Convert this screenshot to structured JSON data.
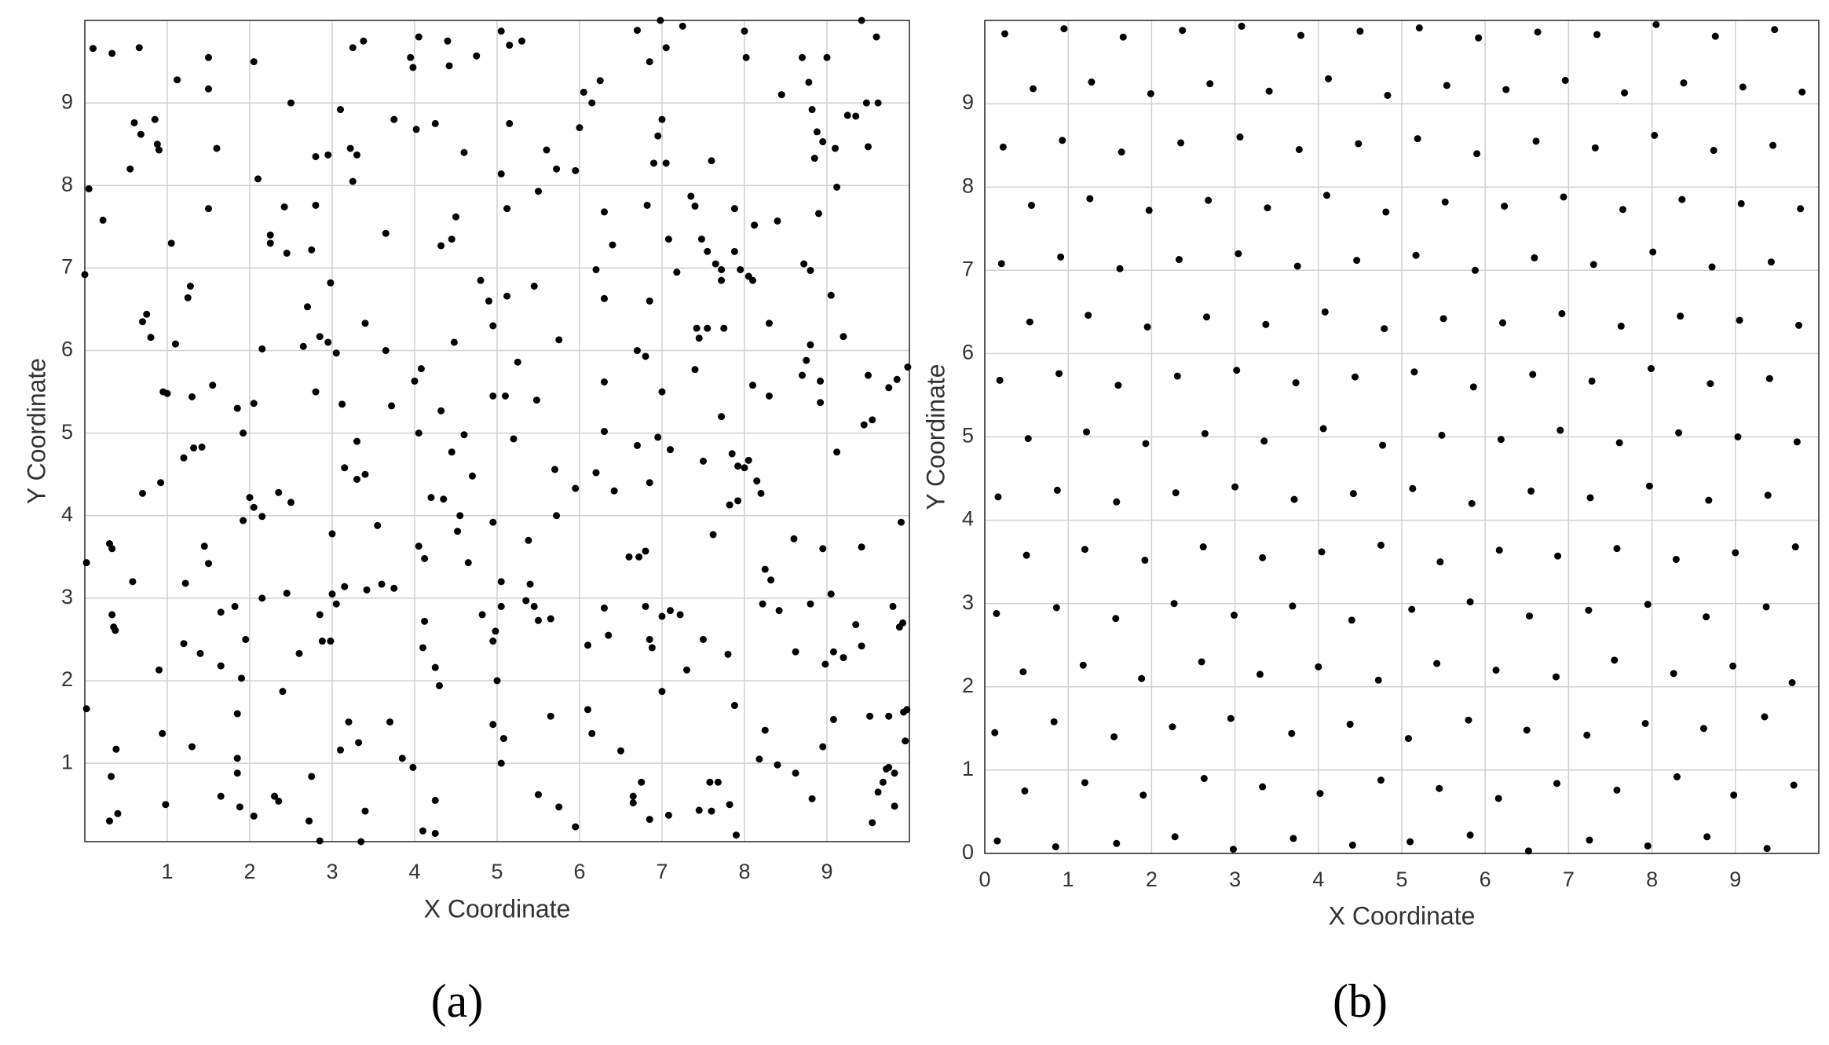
{
  "chart_data": [
    {
      "type": "scatter",
      "label": "(a)",
      "xlabel": "X Coordinate",
      "ylabel": "Y Coordinate",
      "color": "#000000",
      "grid": true,
      "xlim": [
        0,
        10
      ],
      "ylim": [
        0.05,
        10
      ],
      "xticks": [
        1,
        2,
        3,
        4,
        5,
        6,
        7,
        8,
        9
      ],
      "yticks": [
        1,
        2,
        3,
        4,
        5,
        6,
        7,
        8,
        9
      ],
      "x": [
        0.02,
        0.02,
        0.05,
        0.0,
        0.1,
        0.22,
        0.3,
        0.33,
        0.3,
        0.33,
        0.35,
        0.37,
        0.32,
        0.38,
        0.4,
        0.33,
        0.55,
        0.6,
        0.68,
        0.7,
        0.75,
        0.8,
        0.85,
        0.88,
        0.9,
        0.66,
        0.58,
        0.7,
        0.9,
        0.95,
        0.92,
        0.94,
        0.98,
        1.0,
        1.05,
        1.12,
        1.1,
        1.2,
        1.2,
        1.22,
        1.25,
        1.28,
        1.3,
        1.32,
        1.3,
        1.42,
        1.45,
        1.5,
        1.5,
        1.5,
        1.5,
        1.55,
        1.6,
        1.65,
        1.65,
        1.65,
        1.4,
        1.85,
        1.82,
        1.85,
        1.85,
        1.85,
        1.9,
        1.88,
        1.92,
        1.92,
        1.95,
        2.0,
        2.05,
        2.05,
        2.05,
        2.1,
        2.15,
        2.15,
        2.15,
        2.05,
        2.25,
        2.25,
        2.3,
        2.35,
        2.35,
        2.4,
        2.42,
        2.45,
        2.5,
        2.45,
        2.5,
        2.6,
        2.65,
        2.7,
        2.75,
        2.75,
        2.72,
        2.8,
        2.8,
        2.8,
        2.85,
        2.85,
        2.88,
        2.85,
        2.95,
        2.95,
        2.98,
        2.98,
        3.0,
        3.0,
        3.05,
        3.05,
        3.1,
        3.12,
        3.15,
        3.15,
        3.1,
        3.2,
        3.22,
        3.25,
        3.25,
        3.3,
        3.3,
        3.3,
        3.32,
        3.38,
        3.4,
        3.4,
        3.35,
        3.42,
        3.4,
        3.55,
        3.6,
        3.65,
        3.65,
        3.7,
        3.72,
        3.75,
        3.75,
        3.85,
        3.95,
        3.98,
        4.0,
        3.98,
        4.05,
        4.02,
        4.08,
        4.05,
        4.05,
        4.12,
        4.1,
        4.12,
        4.2,
        4.25,
        4.25,
        4.3,
        4.25,
        4.25,
        4.1,
        4.32,
        4.32,
        4.35,
        4.4,
        4.42,
        4.45,
        4.45,
        4.48,
        4.5,
        4.52,
        4.55,
        4.6,
        4.6,
        4.65,
        4.7,
        4.75,
        4.8,
        4.82,
        4.9,
        4.95,
        4.95,
        4.95,
        4.98,
        4.95,
        4.95,
        5.0,
        5.05,
        5.05,
        5.05,
        5.05,
        5.08,
        5.05,
        5.1,
        5.12,
        5.12,
        5.15,
        5.15,
        5.2,
        5.25,
        5.3,
        5.35,
        5.38,
        5.4,
        5.45,
        5.45,
        5.5,
        5.48,
        5.5,
        5.5,
        5.6,
        5.65,
        5.65,
        5.7,
        5.72,
        5.75,
        5.72,
        5.75,
        5.95,
        5.95,
        5.95,
        6.0,
        6.05,
        6.1,
        6.1,
        6.15,
        6.15,
        6.2,
        6.2,
        6.25,
        6.3,
        6.3,
        6.3,
        6.3,
        6.3,
        6.35,
        6.4,
        6.42,
        6.5,
        6.6,
        6.65,
        6.65,
        6.7,
        6.7,
        6.7,
        6.72,
        6.75,
        6.8,
        6.8,
        6.8,
        6.82,
        6.85,
        6.85,
        6.85,
        6.88,
        6.85,
        6.85,
        6.9,
        6.95,
        6.98,
        6.95,
        7.0,
        7.0,
        7.0,
        7.0,
        7.05,
        7.05,
        7.08,
        7.1,
        7.1,
        7.08,
        7.18,
        7.22,
        7.25,
        7.3,
        7.35,
        7.4,
        7.42,
        7.4,
        7.45,
        7.45,
        7.48,
        7.5,
        7.5,
        7.55,
        7.55,
        7.6,
        7.62,
        7.58,
        7.6,
        7.65,
        7.68,
        7.72,
        7.72,
        7.72,
        7.75,
        7.8,
        7.82,
        7.82,
        7.88,
        7.85,
        7.88,
        7.9,
        7.92,
        7.92,
        7.88,
        7.95,
        8.0,
        8.0,
        8.02,
        8.05,
        8.05,
        8.1,
        8.1,
        8.12,
        8.15,
        8.18,
        8.2,
        8.22,
        8.25,
        8.25,
        8.3,
        8.3,
        8.32,
        8.4,
        8.42,
        8.45,
        8.4,
        8.6,
        8.62,
        8.62,
        8.7,
        8.7,
        8.72,
        8.75,
        8.78,
        8.8,
        8.82,
        8.8,
        8.8,
        8.85,
        8.82,
        8.88,
        8.9,
        8.92,
        8.95,
        8.95,
        8.92,
        8.95,
        8.98,
        9.0,
        9.05,
        9.05,
        9.08,
        9.08,
        9.1,
        9.12,
        9.12,
        9.2,
        9.2,
        9.25,
        9.35,
        9.35,
        9.42,
        9.45,
        9.42,
        9.42,
        9.48,
        9.5,
        9.5,
        9.52,
        9.55,
        9.55,
        9.6,
        9.62,
        9.62,
        9.68,
        9.75,
        9.75,
        9.75,
        9.8,
        9.82,
        9.82,
        9.85,
        9.88,
        9.9,
        9.92,
        9.93,
        9.97,
        9.95,
        9.98,
        9.72
      ],
      "values": [
        3.43,
        1.66,
        7.96,
        6.92,
        9.66,
        7.58,
        3.66,
        3.6,
        0.3,
        2.8,
        2.65,
        2.61,
        0.84,
        1.17,
        0.39,
        9.6,
        8.2,
        8.76,
        8.62,
        6.35,
        6.44,
        6.16,
        8.8,
        8.5,
        8.43,
        9.67,
        3.2,
        4.27,
        2.13,
        5.5,
        4.4,
        1.36,
        0.5,
        5.48,
        7.3,
        9.28,
        6.08,
        4.7,
        2.45,
        3.18,
        6.64,
        6.78,
        5.44,
        4.82,
        1.2,
        4.83,
        3.63,
        7.72,
        9.55,
        9.17,
        3.42,
        5.58,
        8.45,
        2.83,
        2.18,
        0.6,
        2.33,
        5.3,
        2.9,
        1.6,
        0.88,
        1.06,
        2.03,
        0.47,
        3.94,
        5.0,
        2.5,
        4.22,
        4.1,
        5.36,
        9.5,
        8.08,
        6.02,
        3.99,
        3.0,
        0.36,
        7.4,
        7.3,
        0.6,
        0.54,
        4.28,
        1.87,
        7.74,
        7.18,
        4.16,
        3.06,
        9.0,
        2.33,
        6.05,
        6.53,
        7.22,
        0.84,
        0.3,
        7.76,
        8.35,
        5.5,
        6.17,
        2.8,
        2.48,
        0.06,
        8.37,
        6.1,
        6.82,
        2.48,
        3.78,
        3.05,
        5.97,
        2.93,
        8.92,
        5.35,
        4.58,
        3.14,
        1.16,
        1.5,
        8.45,
        8.05,
        9.67,
        8.37,
        4.44,
        4.9,
        1.25,
        9.75,
        6.33,
        4.5,
        0.05,
        3.1,
        0.42,
        3.88,
        3.17,
        7.42,
        6.0,
        1.5,
        5.33,
        8.8,
        3.12,
        1.06,
        9.55,
        9.43,
        5.63,
        0.95,
        9.8,
        8.68,
        5.78,
        5.0,
        3.63,
        3.48,
        2.4,
        2.72,
        4.22,
        8.75,
        2.16,
        1.94,
        0.55,
        0.15,
        0.18,
        7.27,
        5.27,
        4.2,
        9.75,
        9.45,
        7.35,
        4.77,
        6.1,
        7.62,
        3.81,
        4.0,
        8.4,
        4.98,
        3.43,
        4.48,
        9.57,
        6.85,
        2.8,
        6.6,
        6.3,
        5.45,
        3.92,
        2.6,
        2.48,
        1.47,
        2.0,
        9.87,
        8.14,
        3.2,
        2.9,
        1.3,
        1.0,
        5.45,
        7.72,
        6.66,
        8.75,
        9.7,
        4.93,
        5.86,
        9.75,
        2.97,
        3.7,
        3.17,
        6.78,
        2.9,
        7.93,
        5.4,
        2.73,
        0.62,
        8.43,
        2.75,
        1.57,
        4.56,
        8.2,
        6.13,
        4.0,
        0.47,
        4.33,
        0.23,
        8.18,
        8.7,
        9.13,
        2.43,
        1.65,
        1.36,
        9.0,
        6.98,
        4.52,
        9.27,
        7.68,
        6.63,
        5.62,
        5.02,
        2.88,
        2.55,
        7.28,
        4.3,
        1.15,
        3.5,
        0.6,
        0.52,
        9.88,
        6.0,
        4.85,
        3.5,
        0.77,
        5.93,
        3.57,
        2.9,
        7.76,
        9.5,
        6.6,
        4.4,
        2.4,
        2.5,
        0.32,
        8.27,
        4.95,
        10.0,
        8.6,
        8.8,
        5.5,
        2.78,
        1.87,
        9.67,
        8.27,
        7.35,
        4.8,
        2.85,
        0.37,
        6.95,
        2.8,
        9.93,
        2.13,
        7.87,
        7.75,
        6.27,
        5.77,
        6.15,
        0.43,
        7.35,
        4.66,
        2.5,
        7.2,
        6.27,
        8.3,
        3.77,
        0.77,
        0.42,
        7.05,
        0.77,
        6.85,
        5.2,
        6.98,
        6.27,
        2.32,
        4.13,
        0.5,
        7.2,
        4.75,
        1.7,
        0.13,
        4.6,
        4.18,
        7.72,
        6.98,
        9.87,
        4.58,
        9.55,
        6.9,
        4.67,
        6.85,
        5.58,
        7.52,
        4.42,
        1.05,
        4.27,
        2.93,
        3.35,
        1.4,
        6.33,
        5.45,
        3.22,
        7.57,
        2.85,
        9.1,
        0.98,
        3.72,
        2.35,
        0.88,
        5.7,
        9.55,
        7.05,
        5.88,
        9.25,
        6.97,
        8.92,
        6.07,
        2.93,
        8.33,
        0.57,
        8.65,
        7.66,
        5.63,
        8.53,
        3.6,
        5.37,
        1.2,
        2.2,
        9.55,
        6.67,
        3.05,
        1.53,
        2.35,
        8.45,
        7.98,
        4.77,
        6.17,
        2.28,
        8.85,
        8.84,
        2.68,
        10.0,
        5.1,
        2.42,
        3.62,
        9.0,
        8.47,
        5.7,
        1.57,
        0.28,
        5.16,
        9.8,
        9.0,
        0.65,
        0.77,
        5.55,
        1.57,
        0.95,
        2.9,
        0.88,
        0.48,
        5.65,
        2.65,
        3.92,
        2.7,
        1.62,
        1.65,
        1.27,
        5.8,
        0.93
      ]
    },
    {
      "type": "scatter",
      "label": "(b)",
      "xlabel": "X Coordinate",
      "ylabel": "Y Coordinate",
      "color": "#000000",
      "grid": true,
      "xlim": [
        0,
        10
      ],
      "ylim": [
        0,
        10
      ],
      "xticks": [
        0,
        1,
        2,
        3,
        4,
        5,
        6,
        7,
        8,
        9
      ],
      "yticks": [
        0,
        1,
        2,
        3,
        4,
        5,
        6,
        7,
        8,
        9
      ],
      "x": [
        0.15,
        0.85,
        1.58,
        2.28,
        2.98,
        3.7,
        4.41,
        5.1,
        5.82,
        6.52,
        7.25,
        7.95,
        8.66,
        9.38,
        0.48,
        1.2,
        1.9,
        2.63,
        3.33,
        4.02,
        4.75,
        5.45,
        6.16,
        6.86,
        7.58,
        8.3,
        8.98,
        9.7,
        0.12,
        0.83,
        1.55,
        2.25,
        2.95,
        3.68,
        4.38,
        5.08,
        5.8,
        6.5,
        7.22,
        7.92,
        8.62,
        9.35,
        0.46,
        1.18,
        1.88,
        2.6,
        3.3,
        4.0,
        4.72,
        5.42,
        6.13,
        6.85,
        7.55,
        8.26,
        8.97,
        9.68,
        0.14,
        0.86,
        1.57,
        2.27,
        2.99,
        3.69,
        4.4,
        5.12,
        5.82,
        6.53,
        7.24,
        7.95,
        8.65,
        9.37,
        0.5,
        1.2,
        1.92,
        2.62,
        3.33,
        4.04,
        4.75,
        5.46,
        6.17,
        6.87,
        7.58,
        8.29,
        9.0,
        9.72,
        0.16,
        0.87,
        1.58,
        2.29,
        3.0,
        3.71,
        4.42,
        5.13,
        5.84,
        6.55,
        7.26,
        7.97,
        8.68,
        9.39,
        0.52,
        1.22,
        1.93,
        2.64,
        3.35,
        4.06,
        4.77,
        5.48,
        6.19,
        6.9,
        7.61,
        8.32,
        9.03,
        9.74,
        0.18,
        0.89,
        1.6,
        2.31,
        3.02,
        3.73,
        4.44,
        5.15,
        5.86,
        6.57,
        7.28,
        7.99,
        8.7,
        9.41,
        0.54,
        1.24,
        1.95,
        2.66,
        3.37,
        4.08,
        4.79,
        5.5,
        6.21,
        6.92,
        7.63,
        8.34,
        9.05,
        9.76,
        0.2,
        0.91,
        1.62,
        2.33,
        3.04,
        3.75,
        4.46,
        5.17,
        5.88,
        6.59,
        7.3,
        8.01,
        8.72,
        9.43,
        0.56,
        1.26,
        1.97,
        2.68,
        3.39,
        4.1,
        4.81,
        5.52,
        6.23,
        6.94,
        7.65,
        8.36,
        9.07,
        9.78,
        0.22,
        0.93,
        1.64,
        2.35,
        3.06,
        3.77,
        4.48,
        5.19,
        5.9,
        6.61,
        7.32,
        8.03,
        8.74,
        9.45,
        0.58,
        1.28,
        1.99,
        2.7,
        3.41,
        4.12,
        4.83,
        5.54,
        6.25,
        6.96,
        7.67,
        8.38,
        9.09,
        9.8,
        0.24,
        0.95,
        1.66,
        2.37,
        3.08,
        3.79,
        4.5,
        5.21,
        5.92,
        6.63,
        7.34,
        8.05,
        8.76,
        9.47
      ],
      "values": [
        0.15,
        0.08,
        0.12,
        0.2,
        0.05,
        0.18,
        0.1,
        0.14,
        0.22,
        0.03,
        0.16,
        0.09,
        0.2,
        0.06,
        0.75,
        0.85,
        0.7,
        0.9,
        0.8,
        0.72,
        0.88,
        0.78,
        0.66,
        0.84,
        0.76,
        0.92,
        0.7,
        0.82,
        1.45,
        1.58,
        1.4,
        1.52,
        1.62,
        1.44,
        1.55,
        1.38,
        1.6,
        1.48,
        1.42,
        1.56,
        1.5,
        1.64,
        2.18,
        2.26,
        2.1,
        2.3,
        2.15,
        2.24,
        2.08,
        2.28,
        2.2,
        2.12,
        2.32,
        2.16,
        2.25,
        2.05,
        2.88,
        2.95,
        2.82,
        3.0,
        2.86,
        2.97,
        2.8,
        2.93,
        3.02,
        2.85,
        2.92,
        2.99,
        2.84,
        2.96,
        3.58,
        3.65,
        3.52,
        3.68,
        3.55,
        3.62,
        3.7,
        3.5,
        3.64,
        3.57,
        3.66,
        3.53,
        3.61,
        3.68,
        4.28,
        4.36,
        4.22,
        4.33,
        4.4,
        4.25,
        4.32,
        4.38,
        4.2,
        4.35,
        4.27,
        4.41,
        4.24,
        4.3,
        4.98,
        5.06,
        4.92,
        5.04,
        4.95,
        5.1,
        4.9,
        5.02,
        4.97,
        5.08,
        4.93,
        5.05,
        5.0,
        4.94,
        5.68,
        5.76,
        5.62,
        5.73,
        5.8,
        5.65,
        5.72,
        5.78,
        5.6,
        5.75,
        5.67,
        5.82,
        5.64,
        5.7,
        6.38,
        6.46,
        6.32,
        6.44,
        6.35,
        6.5,
        6.3,
        6.42,
        6.37,
        6.48,
        6.33,
        6.45,
        6.4,
        6.34,
        7.08,
        7.16,
        7.02,
        7.13,
        7.2,
        7.05,
        7.12,
        7.18,
        7.0,
        7.15,
        7.07,
        7.22,
        7.04,
        7.1,
        7.78,
        7.86,
        7.72,
        7.84,
        7.75,
        7.9,
        7.7,
        7.82,
        7.77,
        7.88,
        7.73,
        7.85,
        7.8,
        7.74,
        8.48,
        8.56,
        8.42,
        8.53,
        8.6,
        8.45,
        8.52,
        8.58,
        8.4,
        8.55,
        8.47,
        8.62,
        8.44,
        8.5,
        9.18,
        9.26,
        9.12,
        9.24,
        9.15,
        9.3,
        9.1,
        9.22,
        9.17,
        9.28,
        9.13,
        9.25,
        9.2,
        9.14,
        9.84,
        9.9,
        9.8,
        9.88,
        9.93,
        9.82,
        9.87,
        9.91,
        9.79,
        9.86,
        9.83,
        9.95,
        9.81,
        9.89
      ]
    }
  ]
}
